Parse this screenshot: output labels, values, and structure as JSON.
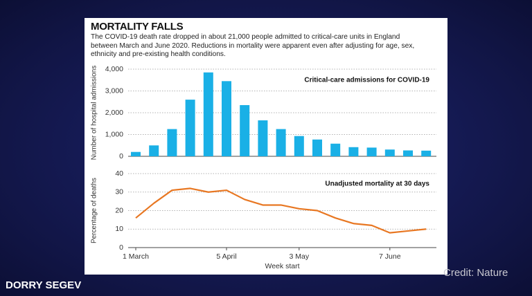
{
  "header": {
    "title": "MORTALITY FALLS",
    "subtitle": "The COVID-19 death rate dropped in about 21,000 people admitted to critical-care units in England between March and June 2020. Reductions in mortality were apparent even after adjusting for age, sex, ethnicity and pre-existing health conditions."
  },
  "slide": {
    "presenter": "DORRY SEGEV",
    "credit": "Credit: Nature"
  },
  "chart_data": [
    {
      "type": "bar",
      "annotation": "Critical-care admissions for COVID-19",
      "ylabel": "Number of hospital admissions",
      "categories": [
        null,
        null,
        null,
        null,
        null,
        null,
        null,
        null,
        null,
        null,
        null,
        null,
        null,
        null,
        null,
        null,
        null
      ],
      "values": [
        200,
        500,
        1250,
        2600,
        3850,
        3450,
        2350,
        1650,
        1250,
        930,
        770,
        580,
        420,
        400,
        310,
        270,
        260
      ],
      "color": "#1ab0e6",
      "ylim": [
        0,
        4000
      ],
      "yticks": [
        0,
        {
          "value": 1000,
          "label": "1,000"
        },
        {
          "value": 2000,
          "label": "2,000"
        },
        {
          "value": 3000,
          "label": "3,000"
        },
        {
          "value": 4000,
          "label": "4,000"
        }
      ],
      "grid": true
    },
    {
      "type": "line",
      "annotation": "Unadjusted mortality at 30 days",
      "ylabel": "Percentage of deaths",
      "xlabel": "Week start",
      "categories": [
        "1 March",
        null,
        null,
        null,
        null,
        "5 April",
        null,
        null,
        null,
        "3 May",
        null,
        null,
        null,
        null,
        "7 June",
        null,
        null
      ],
      "values": [
        16,
        24,
        31,
        32,
        30,
        31,
        26,
        23,
        23,
        21,
        20,
        16,
        13,
        12,
        8,
        9,
        10
      ],
      "color": "#e87722",
      "ylim": [
        0,
        40
      ],
      "yticks": [
        0,
        10,
        20,
        30,
        40
      ],
      "grid": true
    }
  ]
}
